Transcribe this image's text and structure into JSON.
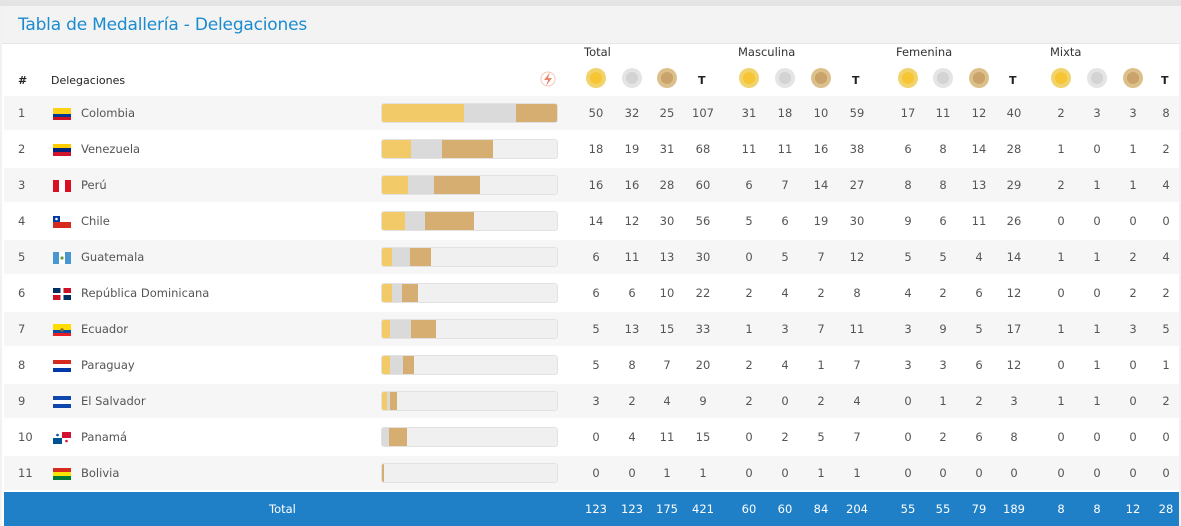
{
  "title": "Tabla de Medallería - Delegaciones",
  "groups": [
    "Total",
    "Masculina",
    "Femenina",
    "Mixta"
  ],
  "col_rank": "#",
  "col_delegation": "Delegaciones",
  "col_total_short": "T",
  "sort_icon": "sort-lightning-icon",
  "colors": {
    "gold": "#f7c534",
    "silver": "#d3d3d3",
    "bronze": "#c9a36a",
    "accent": "#1a8bcf",
    "total_bar": "#1f7fc7"
  },
  "rows": [
    {
      "rank": "1",
      "name": "Colombia",
      "flag": "colombia-flag-icon",
      "total": [
        "50",
        "32",
        "25",
        "107"
      ],
      "masc": [
        "31",
        "18",
        "10",
        "59"
      ],
      "fem": [
        "17",
        "11",
        "12",
        "40"
      ],
      "mix": [
        "2",
        "3",
        "3",
        "8"
      ]
    },
    {
      "rank": "2",
      "name": "Venezuela",
      "flag": "venezuela-flag-icon",
      "total": [
        "18",
        "19",
        "31",
        "68"
      ],
      "masc": [
        "11",
        "11",
        "16",
        "38"
      ],
      "fem": [
        "6",
        "8",
        "14",
        "28"
      ],
      "mix": [
        "1",
        "0",
        "1",
        "2"
      ]
    },
    {
      "rank": "3",
      "name": "Perú",
      "flag": "peru-flag-icon",
      "total": [
        "16",
        "16",
        "28",
        "60"
      ],
      "masc": [
        "6",
        "7",
        "14",
        "27"
      ],
      "fem": [
        "8",
        "8",
        "13",
        "29"
      ],
      "mix": [
        "2",
        "1",
        "1",
        "4"
      ]
    },
    {
      "rank": "4",
      "name": "Chile",
      "flag": "chile-flag-icon",
      "total": [
        "14",
        "12",
        "30",
        "56"
      ],
      "masc": [
        "5",
        "6",
        "19",
        "30"
      ],
      "fem": [
        "9",
        "6",
        "11",
        "26"
      ],
      "mix": [
        "0",
        "0",
        "0",
        "0"
      ]
    },
    {
      "rank": "5",
      "name": "Guatemala",
      "flag": "guatemala-flag-icon",
      "total": [
        "6",
        "11",
        "13",
        "30"
      ],
      "masc": [
        "0",
        "5",
        "7",
        "12"
      ],
      "fem": [
        "5",
        "5",
        "4",
        "14"
      ],
      "mix": [
        "1",
        "1",
        "2",
        "4"
      ]
    },
    {
      "rank": "6",
      "name": "República Dominicana",
      "flag": "dominican-republic-flag-icon",
      "total": [
        "6",
        "6",
        "10",
        "22"
      ],
      "masc": [
        "2",
        "4",
        "2",
        "8"
      ],
      "fem": [
        "4",
        "2",
        "6",
        "12"
      ],
      "mix": [
        "0",
        "0",
        "2",
        "2"
      ]
    },
    {
      "rank": "7",
      "name": "Ecuador",
      "flag": "ecuador-flag-icon",
      "total": [
        "5",
        "13",
        "15",
        "33"
      ],
      "masc": [
        "1",
        "3",
        "7",
        "11"
      ],
      "fem": [
        "3",
        "9",
        "5",
        "17"
      ],
      "mix": [
        "1",
        "1",
        "3",
        "5"
      ]
    },
    {
      "rank": "8",
      "name": "Paraguay",
      "flag": "paraguay-flag-icon",
      "total": [
        "5",
        "8",
        "7",
        "20"
      ],
      "masc": [
        "2",
        "4",
        "1",
        "7"
      ],
      "fem": [
        "3",
        "3",
        "6",
        "12"
      ],
      "mix": [
        "0",
        "1",
        "0",
        "1"
      ]
    },
    {
      "rank": "9",
      "name": "El Salvador",
      "flag": "el-salvador-flag-icon",
      "total": [
        "3",
        "2",
        "4",
        "9"
      ],
      "masc": [
        "2",
        "0",
        "2",
        "4"
      ],
      "fem": [
        "0",
        "1",
        "2",
        "3"
      ],
      "mix": [
        "1",
        "1",
        "0",
        "2"
      ]
    },
    {
      "rank": "10",
      "name": "Panamá",
      "flag": "panama-flag-icon",
      "total": [
        "0",
        "4",
        "11",
        "15"
      ],
      "masc": [
        "0",
        "2",
        "5",
        "7"
      ],
      "fem": [
        "0",
        "2",
        "6",
        "8"
      ],
      "mix": [
        "0",
        "0",
        "0",
        "0"
      ]
    },
    {
      "rank": "11",
      "name": "Bolivia",
      "flag": "bolivia-flag-icon",
      "total": [
        "0",
        "0",
        "1",
        "1"
      ],
      "masc": [
        "0",
        "0",
        "1",
        "1"
      ],
      "fem": [
        "0",
        "0",
        "0",
        "0"
      ],
      "mix": [
        "0",
        "0",
        "0",
        "0"
      ]
    }
  ],
  "totals": {
    "label": "Total",
    "total": [
      "123",
      "123",
      "175",
      "421"
    ],
    "masc": [
      "60",
      "60",
      "84",
      "204"
    ],
    "fem": [
      "55",
      "55",
      "79",
      "189"
    ],
    "mix": [
      "8",
      "8",
      "12",
      "28"
    ]
  },
  "bar_scale_max": 107
}
